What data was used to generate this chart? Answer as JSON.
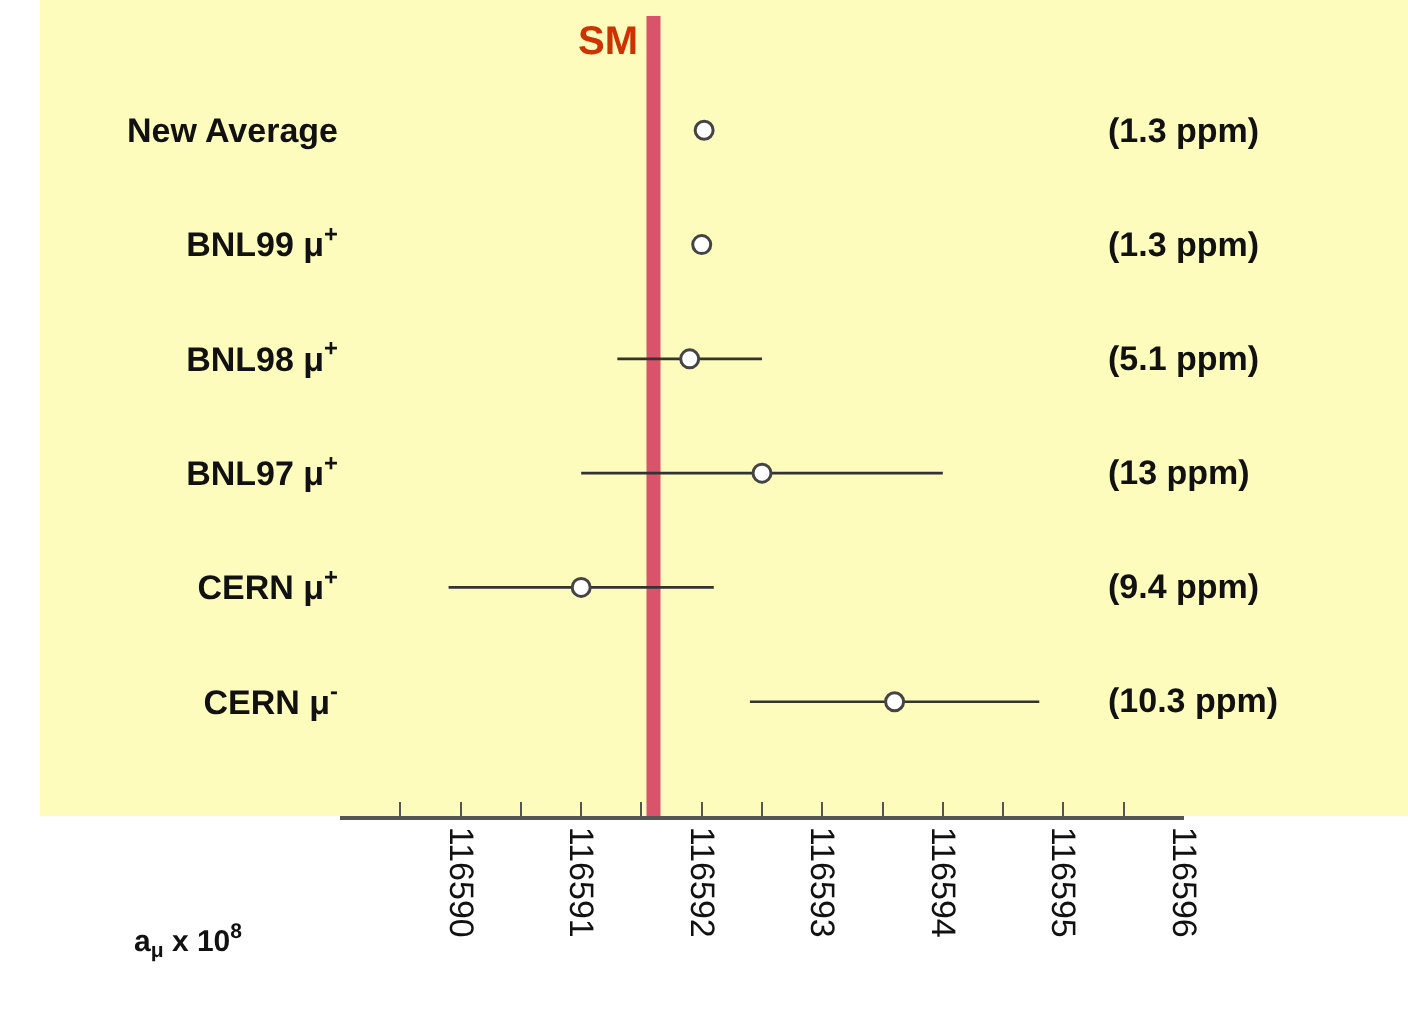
{
  "chart_data": {
    "type": "scatter",
    "categories": [
      "New Average",
      "BNL99 μ$^{+}$",
      "BNL98 μ$^{+}$",
      "BNL97 μ$^{+}$",
      "CERN μ$^{+}$",
      "CERN μ$^{-}$"
    ],
    "orientation": "horizontal",
    "series": [
      {
        "color": "#ffffff",
        "values": [
          116592.02,
          116592.0,
          116591.9,
          116592.5,
          116591.0,
          116593.6
        ],
        "errors": [
          null,
          null,
          0.6,
          1.5,
          1.1,
          1.2
        ]
      }
    ],
    "annotations": [
      "(1.3 ppm)",
      "(1.3 ppm)",
      "(5.1 ppm)",
      "(13 ppm)",
      "(9.4 ppm)",
      "(10.3 ppm)"
    ],
    "xlabel": "a$_{μ}$ x 10$^{8}$",
    "xlim": [
      116589,
      116596
    ],
    "xticks": [
      {
        "value": 116589.5,
        "label": null
      },
      116590,
      {
        "value": 116590.5,
        "label": null
      },
      116591,
      {
        "value": 116591.5,
        "label": null
      },
      116592,
      {
        "value": 116592.5,
        "label": null
      },
      116593,
      {
        "value": 116593.5,
        "label": null
      },
      116594,
      {
        "value": 116594.5,
        "label": null
      },
      116595,
      {
        "value": 116595.5,
        "label": null
      },
      116596
    ],
    "ref_lines": [
      {
        "axis": "x",
        "value": 116591.6,
        "label": "SM",
        "color": "#d9536a"
      }
    ],
    "marker": "circle",
    "grid": false
  }
}
